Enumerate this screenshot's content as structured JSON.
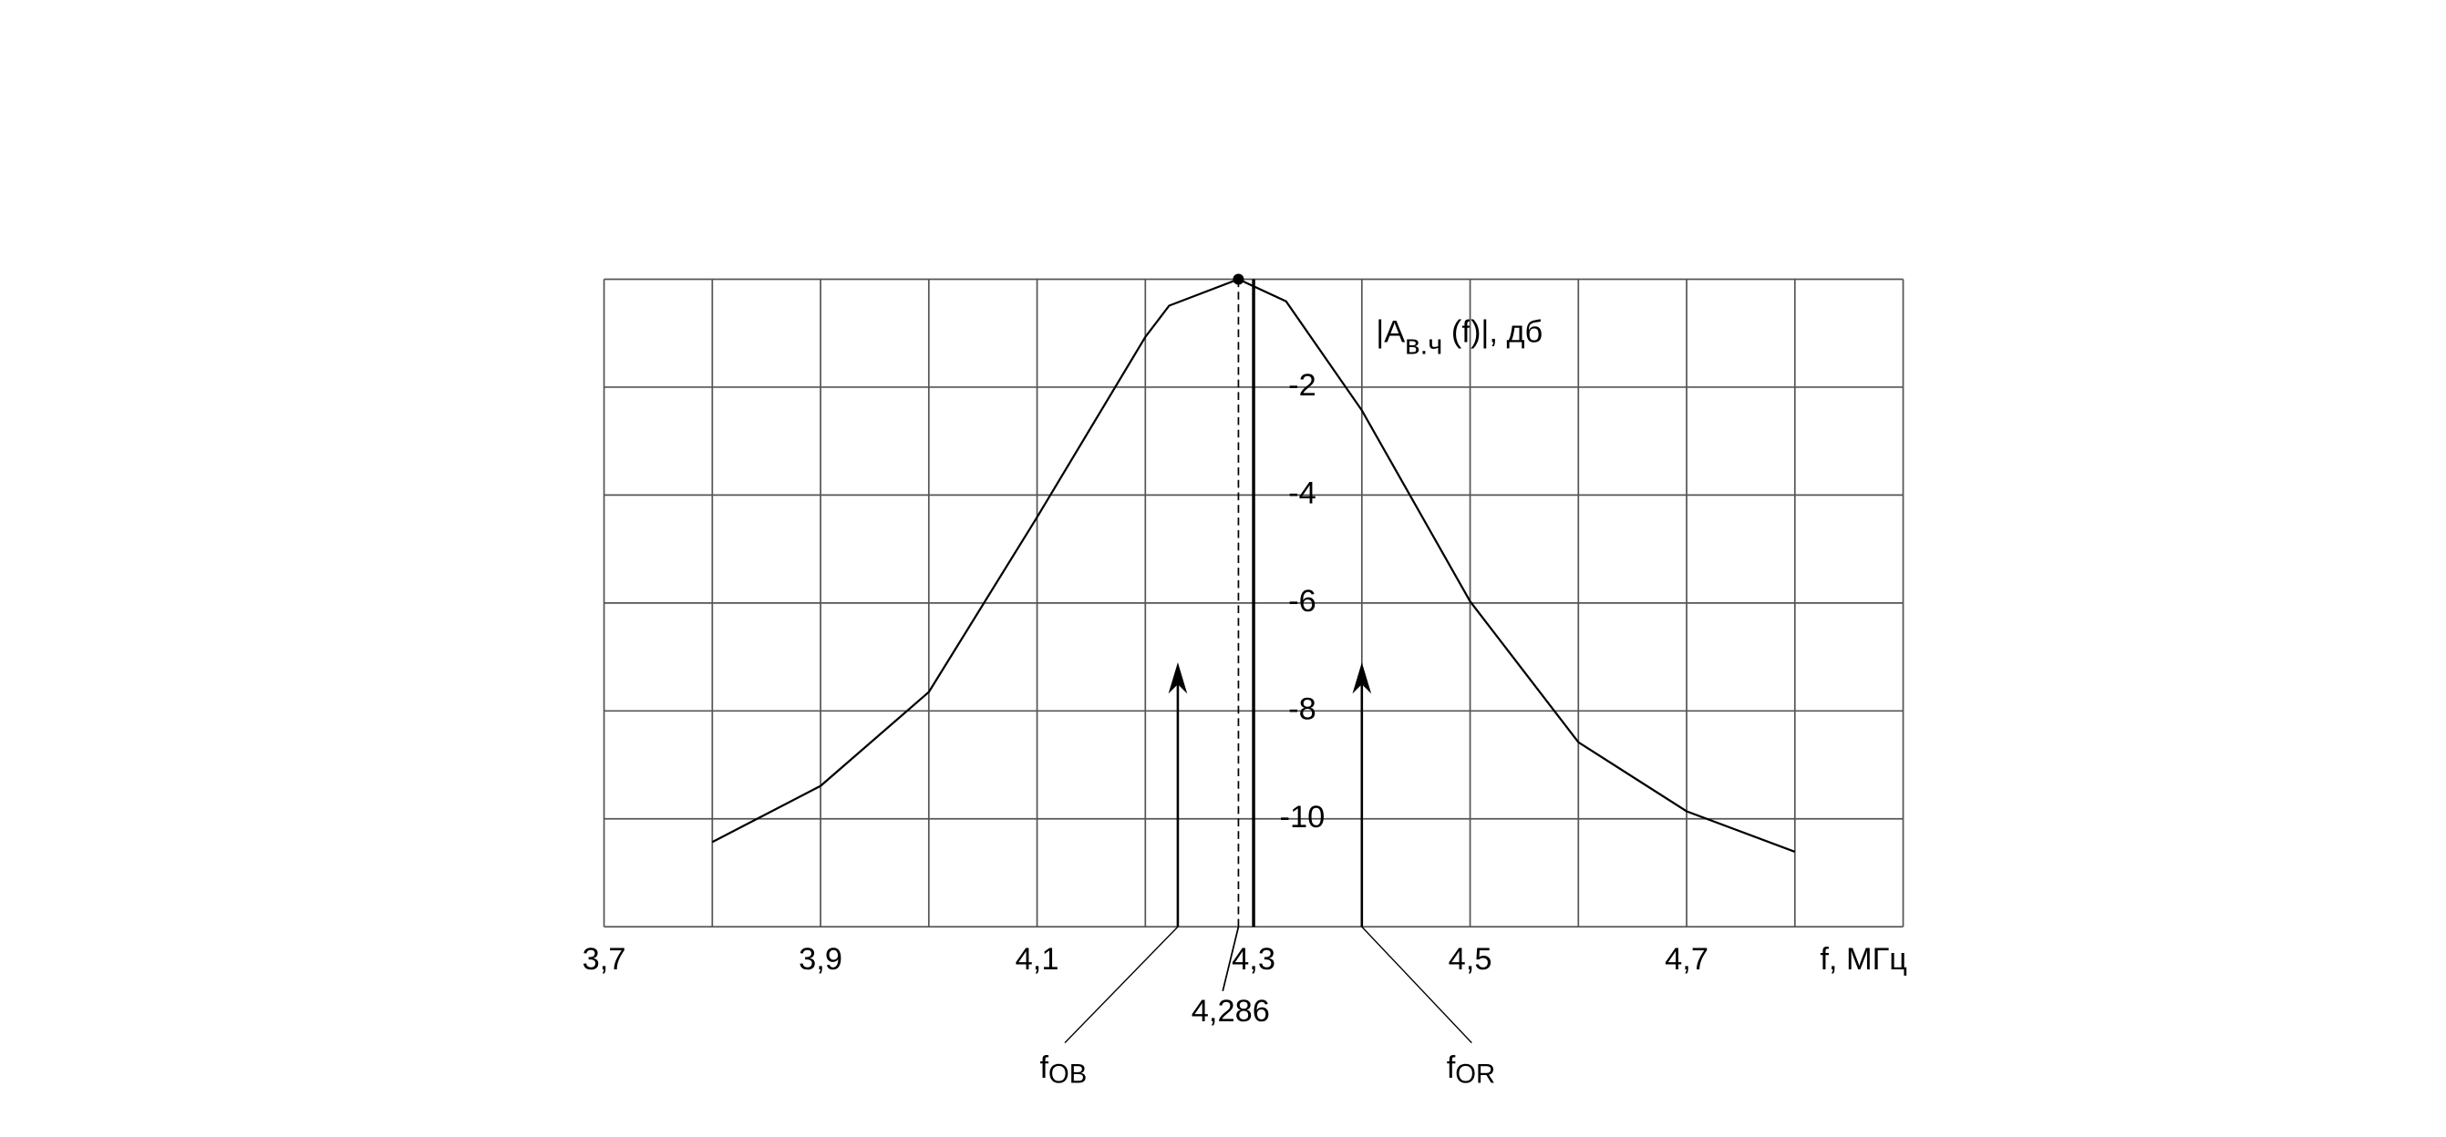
{
  "chart_data": {
    "type": "line",
    "xlabel": "f, МГц",
    "ylabel": {
      "main": "|A",
      "sub": "в.ч",
      "rest": " (f)|, дб"
    },
    "x": [
      3.8,
      3.9,
      4.0,
      4.1,
      4.2,
      4.222,
      4.286,
      4.33,
      4.4,
      4.5,
      4.6,
      4.7,
      4.8
    ],
    "values": [
      -10.43,
      -9.39,
      -7.65,
      -4.41,
      -1.07,
      -0.49,
      0,
      -0.41,
      -2.43,
      -5.97,
      -8.58,
      -9.86,
      -10.61
    ],
    "color": "#000000",
    "xlim": [
      3.7,
      4.9
    ],
    "ylim": [
      -12,
      0
    ],
    "xticks": [
      {
        "value": 3.7,
        "label": "3,7"
      },
      {
        "value": 3.8,
        "label": null
      },
      {
        "value": 3.9,
        "label": "3,9"
      },
      {
        "value": 4.0,
        "label": null
      },
      {
        "value": 4.1,
        "label": "4,1"
      },
      {
        "value": 4.2,
        "label": null
      },
      {
        "value": 4.3,
        "label": "4,3"
      },
      {
        "value": 4.4,
        "label": null
      },
      {
        "value": 4.5,
        "label": "4,5"
      },
      {
        "value": 4.6,
        "label": null
      },
      {
        "value": 4.7,
        "label": "4,7"
      },
      {
        "value": 4.8,
        "label": null
      },
      {
        "value": 4.9,
        "label": null
      }
    ],
    "yticks": [
      {
        "value": 0,
        "label": null
      },
      -2,
      -4,
      -6,
      -8,
      -10,
      {
        "value": -12,
        "label": null
      }
    ],
    "grid": true,
    "peak": {
      "x": 4.286,
      "label": "4,286"
    },
    "markers": [
      {
        "x": 4.23,
        "top": -7.1,
        "label": "f",
        "sub": "OB"
      },
      {
        "x": 4.4,
        "top": -7.1,
        "label": "f",
        "sub": "OR"
      }
    ]
  }
}
